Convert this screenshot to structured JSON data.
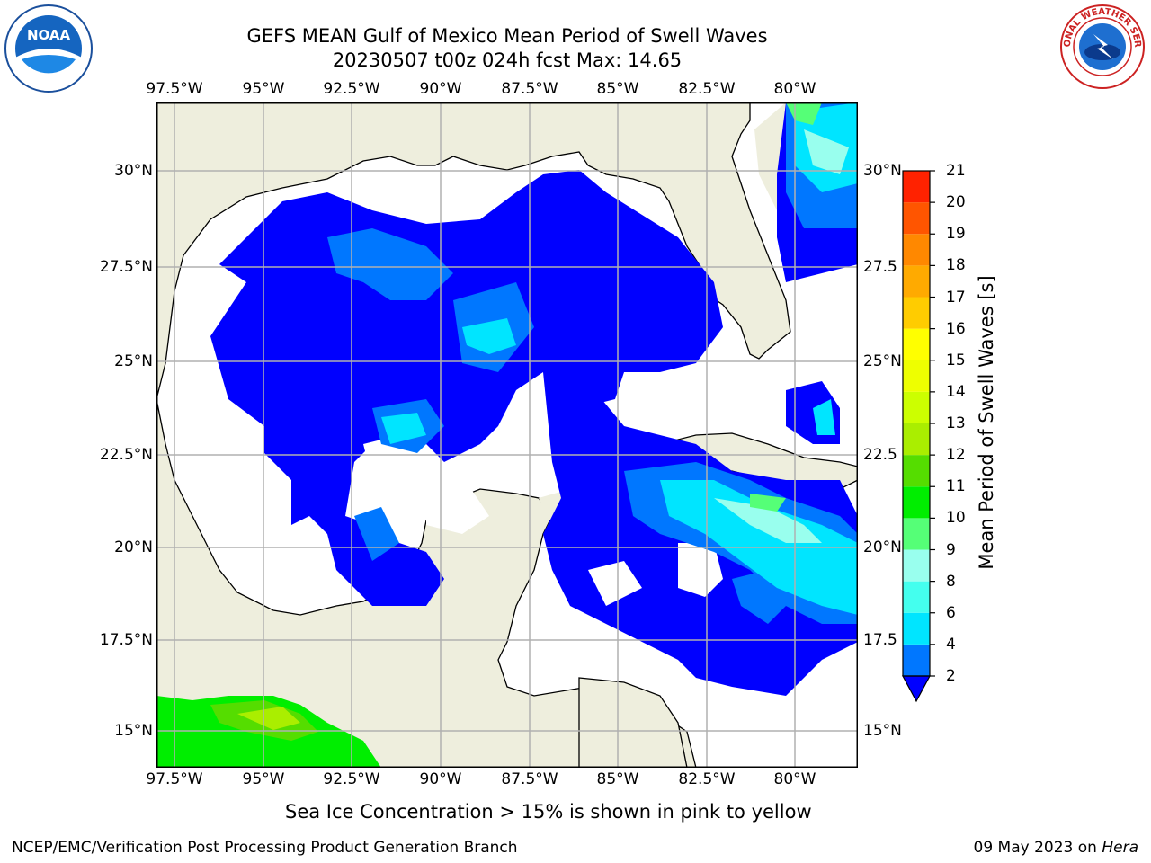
{
  "title": {
    "line1": "GEFS MEAN Gulf of Mexico Mean Period of Swell Waves",
    "line2": "20230507 t00z 024h fcst   Max: 14.65"
  },
  "logos": {
    "left": {
      "name": "noaa-logo",
      "text": "NOAA"
    },
    "right": {
      "name": "nws-logo",
      "text": "NATIONAL WEATHER SERVICE"
    }
  },
  "map": {
    "lon_ticks": [
      "97.5°W",
      "95°W",
      "92.5°W",
      "90°W",
      "87.5°W",
      "85°W",
      "82.5°W",
      "80°W"
    ],
    "lat_ticks_left": [
      "30°N",
      "27.5°N",
      "25°N",
      "22.5°N",
      "20°N",
      "17.5°N",
      "15°N"
    ],
    "lat_ticks_right": [
      "30°N",
      "27.5",
      "25°N",
      "22.5",
      "20°N",
      "17.5",
      "15°N"
    ],
    "land_color": "#eeeedd",
    "gridline_color": "#b0b0b0"
  },
  "colorbar": {
    "title": "Mean Period of Swell Waves [s]",
    "levels": [
      "2",
      "4",
      "6",
      "8",
      "9",
      "10",
      "11",
      "12",
      "13",
      "14",
      "15",
      "16",
      "17",
      "18",
      "19",
      "20",
      "21"
    ],
    "colors": [
      "#0000ff",
      "#0077ff",
      "#00e5ff",
      "#44ffee",
      "#99ffee",
      "#55ff77",
      "#00ee00",
      "#55dd00",
      "#aaee00",
      "#ccff00",
      "#eeff00",
      "#ffff00",
      "#ffcc00",
      "#ffaa00",
      "#ff8800",
      "#ff5500",
      "#ff2200",
      "#ff0000"
    ]
  },
  "footnote": "Sea Ice Concentration > 15% is shown in pink to yellow",
  "footer": {
    "left": "NCEP/EMC/Verification Post Processing Product Generation Branch",
    "right_date": "09 May 2023 on ",
    "right_host": "Hera"
  }
}
